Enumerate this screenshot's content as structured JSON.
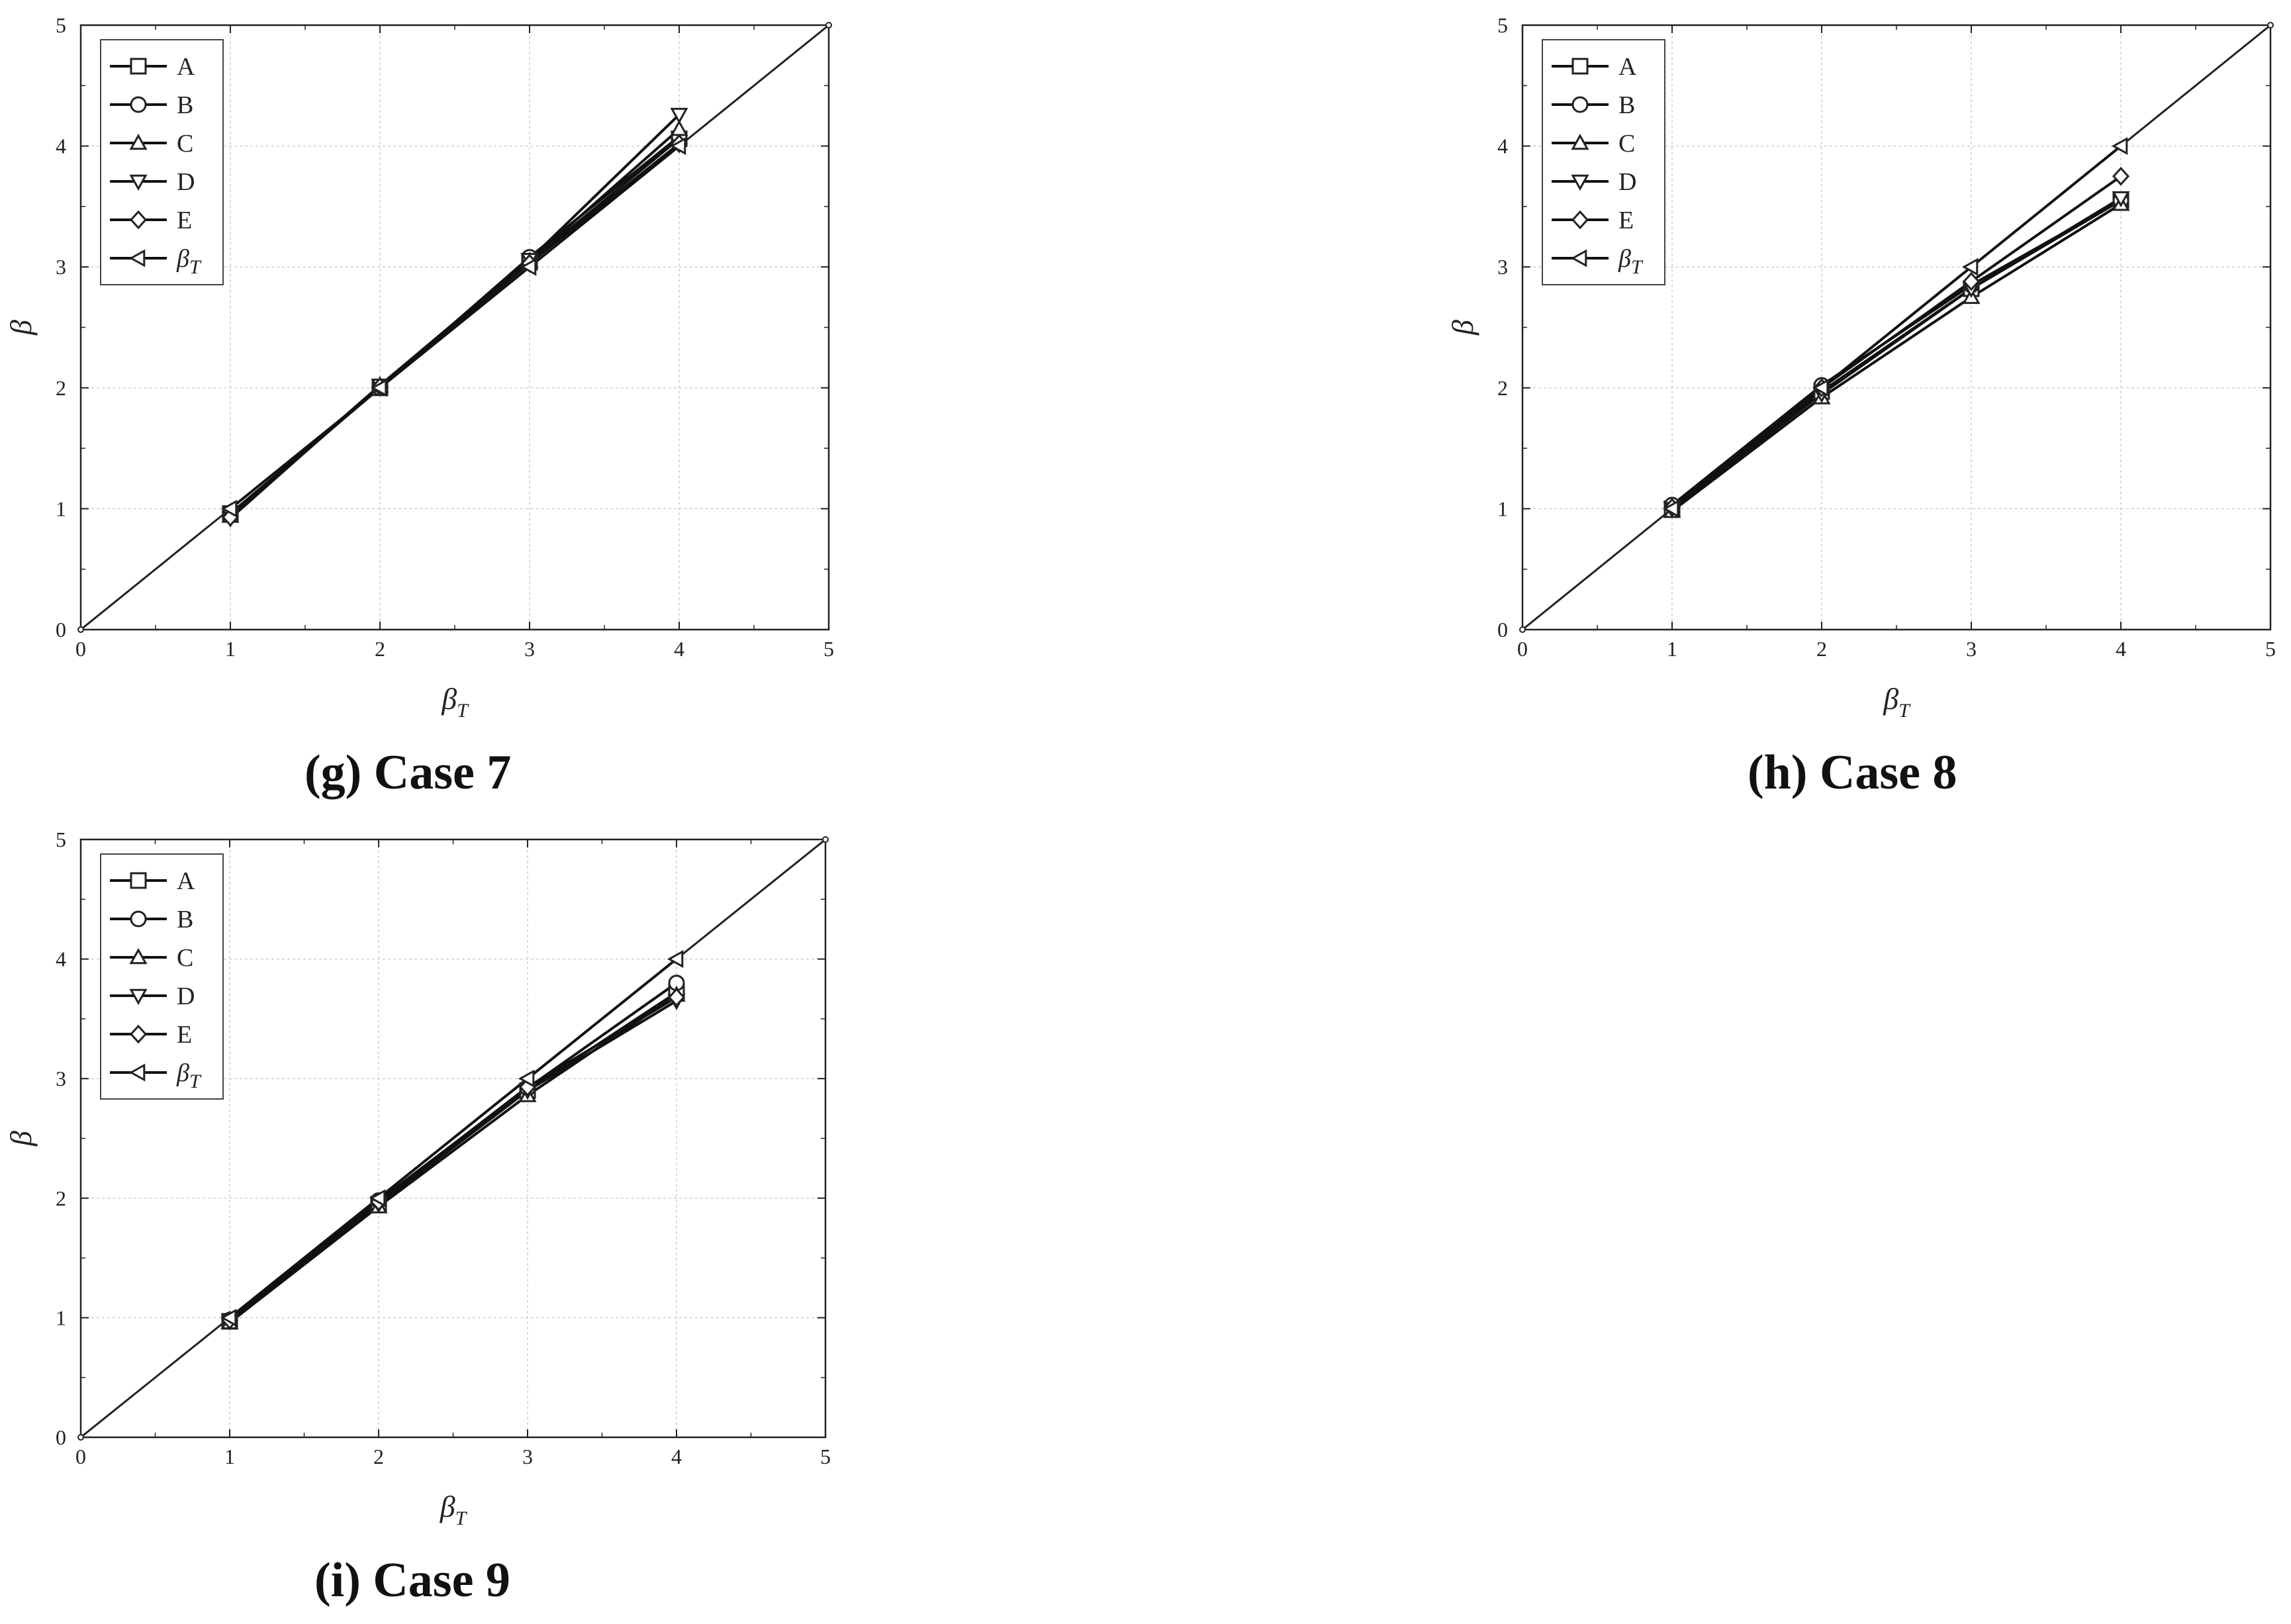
{
  "chart_data": [
    {
      "id": "g",
      "type": "line",
      "caption": "(g) Case 7",
      "xlabel": "β",
      "xlabel_sub": "T",
      "ylabel": "β",
      "xlim": [
        0,
        5
      ],
      "ylim": [
        0,
        5
      ],
      "xticks": [
        0,
        1,
        2,
        3,
        4,
        5
      ],
      "yticks": [
        0,
        1,
        2,
        3,
        4,
        5
      ],
      "grid": true,
      "legend_position": "top-left",
      "reference_line": {
        "x": [
          0,
          5
        ],
        "y": [
          0,
          5
        ]
      },
      "x": [
        1,
        2,
        3,
        4
      ],
      "series": [
        {
          "name": "A",
          "marker": "square",
          "values": [
            0.96,
            2.0,
            3.04,
            4.06
          ]
        },
        {
          "name": "B",
          "marker": "circle",
          "values": [
            0.95,
            2.0,
            3.08,
            4.08
          ]
        },
        {
          "name": "C",
          "marker": "triangle-up",
          "values": [
            0.94,
            2.02,
            3.05,
            4.14
          ]
        },
        {
          "name": "D",
          "marker": "triangle-down",
          "values": [
            0.92,
            2.02,
            3.06,
            4.26
          ]
        },
        {
          "name": "E",
          "marker": "diamond",
          "values": [
            0.93,
            2.01,
            3.03,
            4.02
          ]
        },
        {
          "name": "β",
          "name_sub": "T",
          "marker": "triangle-left",
          "values": [
            1,
            2,
            3,
            4
          ]
        }
      ]
    },
    {
      "id": "h",
      "type": "line",
      "caption": "(h) Case 8",
      "xlabel": "β",
      "xlabel_sub": "T",
      "ylabel": "β",
      "xlim": [
        0,
        5
      ],
      "ylim": [
        0,
        5
      ],
      "xticks": [
        0,
        1,
        2,
        3,
        4,
        5
      ],
      "yticks": [
        0,
        1,
        2,
        3,
        4,
        5
      ],
      "grid": true,
      "legend_position": "top-left",
      "reference_line": {
        "x": [
          0,
          5
        ],
        "y": [
          0,
          5
        ]
      },
      "x": [
        1,
        2,
        3,
        4
      ],
      "series": [
        {
          "name": "A",
          "marker": "square",
          "values": [
            1.0,
            1.97,
            2.82,
            3.55
          ]
        },
        {
          "name": "B",
          "marker": "circle",
          "values": [
            1.03,
            2.02,
            2.85,
            3.55
          ]
        },
        {
          "name": "C",
          "marker": "triangle-up",
          "values": [
            0.98,
            1.92,
            2.75,
            3.52
          ]
        },
        {
          "name": "D",
          "marker": "triangle-down",
          "values": [
            1.0,
            1.95,
            2.82,
            3.57
          ]
        },
        {
          "name": "E",
          "marker": "diamond",
          "values": [
            1.01,
            2.0,
            2.88,
            3.75
          ]
        },
        {
          "name": "β",
          "name_sub": "T",
          "marker": "triangle-left",
          "values": [
            1,
            2,
            3,
            4
          ]
        }
      ]
    },
    {
      "id": "i",
      "type": "line",
      "caption": "(i) Case 9",
      "xlabel": "β",
      "xlabel_sub": "T",
      "ylabel": "β",
      "xlim": [
        0,
        5
      ],
      "ylim": [
        0,
        5
      ],
      "xticks": [
        0,
        1,
        2,
        3,
        4,
        5
      ],
      "yticks": [
        0,
        1,
        2,
        3,
        4,
        5
      ],
      "grid": true,
      "legend_position": "top-left",
      "reference_line": {
        "x": [
          0,
          5
        ],
        "y": [
          0,
          5
        ]
      },
      "x": [
        1,
        2,
        3,
        4
      ],
      "series": [
        {
          "name": "A",
          "marker": "square",
          "values": [
            0.97,
            1.95,
            2.9,
            3.72
          ]
        },
        {
          "name": "B",
          "marker": "circle",
          "values": [
            0.98,
            1.98,
            2.92,
            3.8
          ]
        },
        {
          "name": "C",
          "marker": "triangle-up",
          "values": [
            0.96,
            1.93,
            2.86,
            3.7
          ]
        },
        {
          "name": "D",
          "marker": "triangle-down",
          "values": [
            0.97,
            1.95,
            2.9,
            3.65
          ]
        },
        {
          "name": "E",
          "marker": "diamond",
          "values": [
            0.98,
            1.97,
            2.93,
            3.68
          ]
        },
        {
          "name": "β",
          "name_sub": "T",
          "marker": "triangle-left",
          "values": [
            1,
            2,
            3,
            4
          ]
        }
      ]
    }
  ]
}
